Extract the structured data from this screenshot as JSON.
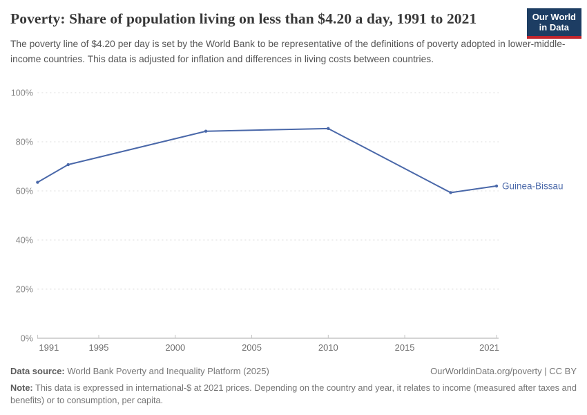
{
  "header": {
    "title": "Poverty: Share of population living on less than $4.20 a day, 1991 to 2021",
    "subtitle": "The poverty line of $4.20 per day is set by the World Bank to be representative of the definitions of poverty adopted in lower-middle-income countries. This data is adjusted for inflation and differences in living costs between countries.",
    "logo": {
      "line1": "Our World",
      "line2": "in Data"
    }
  },
  "chart_data": {
    "type": "line",
    "title": "Poverty: Share of population living on less than $4.20 a day, 1991 to 2021",
    "x": [
      1991,
      1993,
      2002,
      2010,
      2018,
      2021
    ],
    "series": [
      {
        "name": "Guinea-Bissau",
        "color": "#4a68a9",
        "values": [
          63.5,
          70.7,
          84.3,
          85.4,
          59.3,
          62.0
        ]
      }
    ],
    "x_ticks": [
      1991,
      1995,
      2000,
      2005,
      2010,
      2015,
      2021
    ],
    "y_ticks": [
      0,
      20,
      40,
      60,
      80,
      100
    ],
    "y_tick_suffix": "%",
    "xlim": [
      1991,
      2021
    ],
    "ylim": [
      0,
      100
    ],
    "xlabel": "",
    "ylabel": "",
    "grid": "horizontal-dashed",
    "legend_position": "end-of-line-label"
  },
  "colors": {
    "line": "#4a68a9",
    "gridline": "#dcdcdc",
    "axis": "#a9a9a9",
    "tick": "#c4c4c4",
    "logo_bg": "#1d3d63",
    "logo_accent": "#c0262d"
  },
  "footer": {
    "datasource_label": "Data source:",
    "datasource_text": " World Bank Poverty and Inequality Platform (2025)",
    "attribution": "OurWorldinData.org/poverty | CC BY",
    "note_label": "Note:",
    "note_text": " This data is expressed in international-$ at 2021 prices. Depending on the country and year, it relates to income (measured after taxes and benefits) or to consumption, per capita."
  }
}
